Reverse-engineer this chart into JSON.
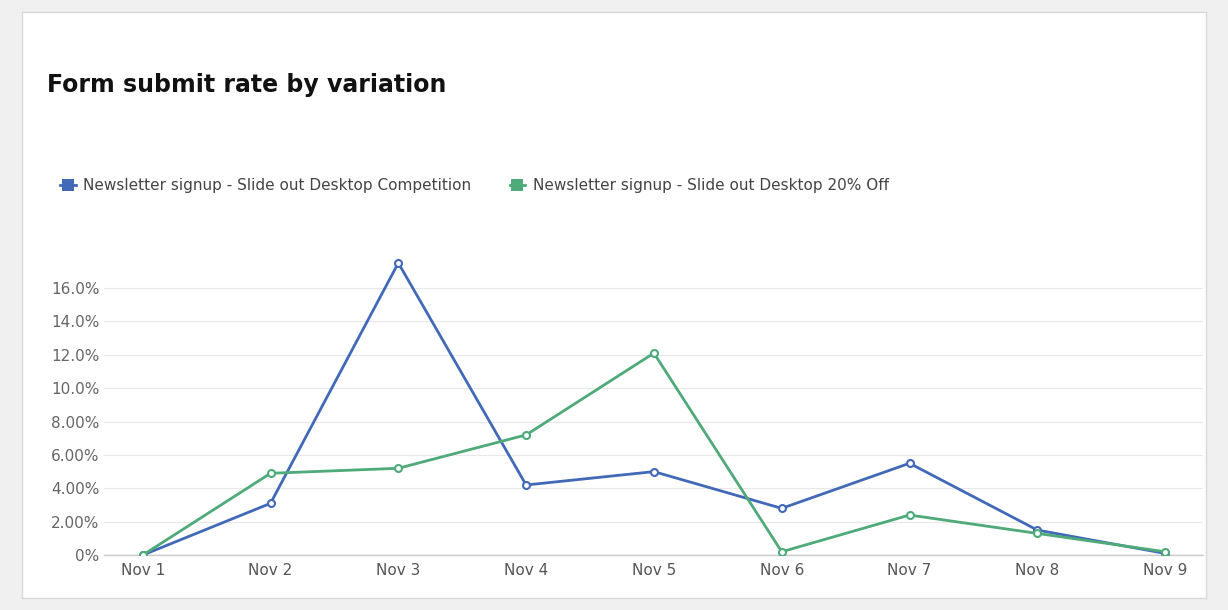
{
  "title": "Form submit rate by variation",
  "x_labels": [
    "Nov 1",
    "Nov 2",
    "Nov 3",
    "Nov 4",
    "Nov 5",
    "Nov 6",
    "Nov 7",
    "Nov 8",
    "Nov 9"
  ],
  "series": [
    {
      "name": "Newsletter signup - Slide out Desktop Competition",
      "color": "#4169b8",
      "values": [
        0.0,
        0.031,
        0.175,
        0.042,
        0.05,
        0.028,
        0.055,
        0.015,
        0.001
      ]
    },
    {
      "name": "Newsletter signup - Slide out Desktop 20% Off",
      "color": "#4eaa78",
      "values": [
        0.0,
        0.049,
        0.052,
        0.072,
        0.121,
        0.002,
        0.024,
        0.013,
        0.002
      ]
    }
  ],
  "ylim": [
    0,
    0.19
  ],
  "yticks": [
    0.0,
    0.02,
    0.04,
    0.06,
    0.08,
    0.1,
    0.12,
    0.14,
    0.16
  ],
  "ytick_labels": [
    "0%",
    "2.00%",
    "4.00%",
    "6.00%",
    "8.00%",
    "10.0%",
    "12.0%",
    "14.0%",
    "16.0%"
  ],
  "background_color": "#ffffff",
  "outer_background": "#f0f0f0",
  "grid_color": "#e8e8e8",
  "title_fontsize": 17,
  "legend_fontsize": 11,
  "tick_fontsize": 11,
  "marker": "o",
  "marker_size": 5,
  "line_width": 2
}
